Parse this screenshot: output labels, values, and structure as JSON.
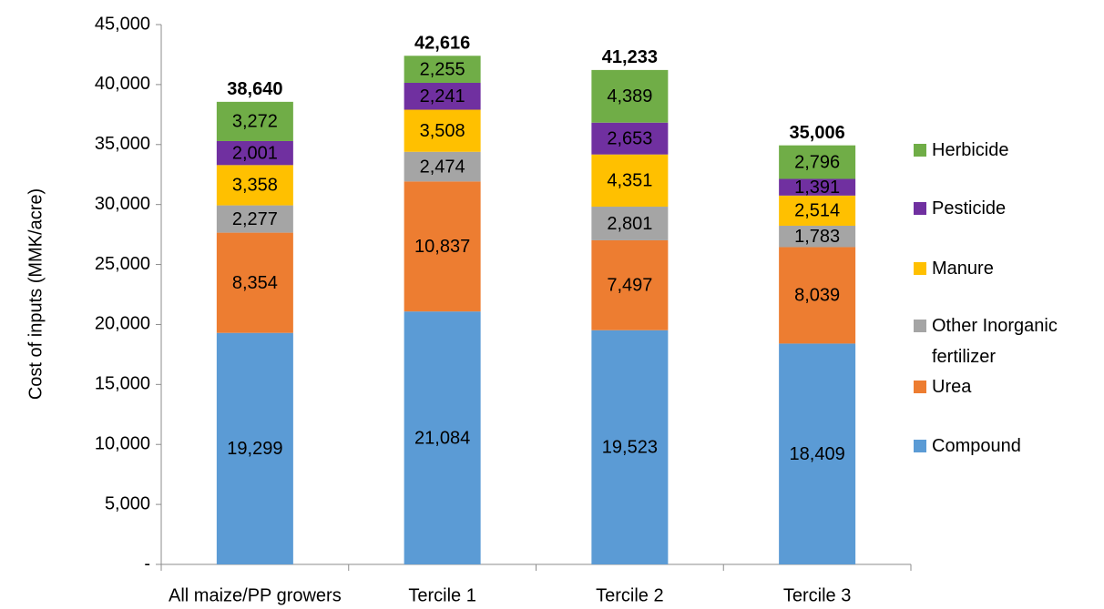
{
  "chart_data": {
    "type": "stacked_bar",
    "y_label": "Cost of inputs (MMK/acre)",
    "categories": [
      "All maize/PP growers",
      "Tercile 1",
      "Tercile 2",
      "Tercile 3"
    ],
    "series": [
      {
        "name": "Compound",
        "color": "#5b9bd5",
        "values": [
          19299,
          21084,
          19523,
          18409
        ],
        "value_labels": [
          "19,299",
          "21,084",
          "19,523",
          "18,409"
        ]
      },
      {
        "name": "Urea",
        "color": "#ed7d31",
        "values": [
          8354,
          10837,
          7497,
          8039
        ],
        "value_labels": [
          "8,354",
          "10,837",
          "7,497",
          "8,039"
        ]
      },
      {
        "name": "Other Inorganic fertilizer",
        "color": "#a5a5a5",
        "values": [
          2277,
          2474,
          2801,
          1783
        ],
        "value_labels": [
          "2,277",
          "2,474",
          "2,801",
          "1,783"
        ]
      },
      {
        "name": "Manure",
        "color": "#ffc000",
        "values": [
          3358,
          3508,
          4351,
          2514
        ],
        "value_labels": [
          "3,358",
          "3,508",
          "4,351",
          "2,514"
        ]
      },
      {
        "name": "Pesticide",
        "color": "#7030a0",
        "values": [
          2001,
          2241,
          2653,
          1391
        ],
        "value_labels": [
          "2,001",
          "2,241",
          "2,653",
          "1,391"
        ]
      },
      {
        "name": "Herbicide",
        "color": "#70ad47",
        "values": [
          3272,
          2255,
          4389,
          2796
        ],
        "value_labels": [
          "3,272",
          "2,255",
          "4,389",
          "2,796"
        ]
      }
    ],
    "totals": {
      "values": [
        38640,
        42616,
        41233,
        35006
      ],
      "value_labels": [
        "38,640",
        "42,616",
        "41,233",
        "35,006"
      ]
    },
    "ylim": [
      0,
      45000
    ],
    "yticks": [
      {
        "value": 0,
        "label": "-"
      },
      {
        "value": 5000,
        "label": "5,000"
      },
      {
        "value": 10000,
        "label": "10,000"
      },
      {
        "value": 15000,
        "label": "15,000"
      },
      {
        "value": 20000,
        "label": "20,000"
      },
      {
        "value": 25000,
        "label": "25,000"
      },
      {
        "value": 30000,
        "label": "30,000"
      },
      {
        "value": 35000,
        "label": "35,000"
      },
      {
        "value": 40000,
        "label": "40,000"
      },
      {
        "value": 45000,
        "label": "45,000"
      }
    ],
    "legend": "right"
  }
}
